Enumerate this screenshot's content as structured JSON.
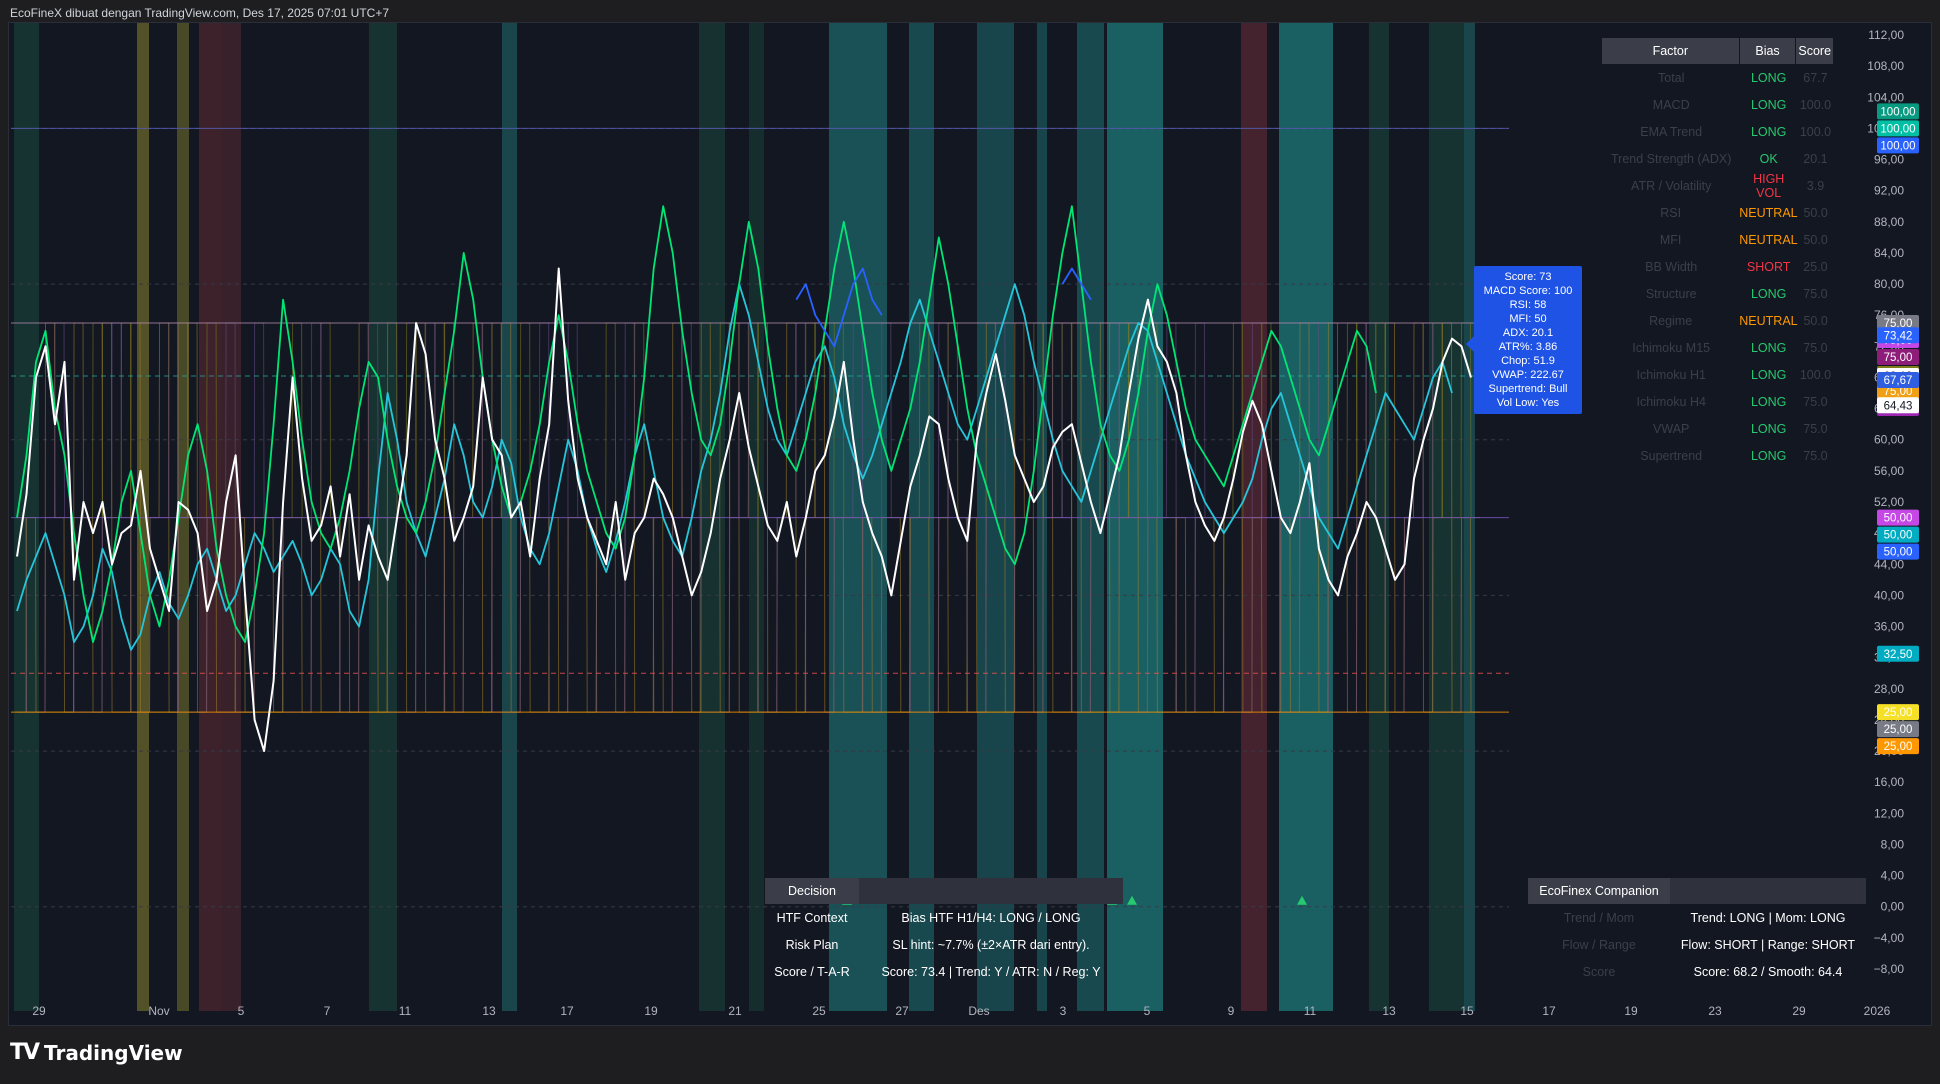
{
  "header": {
    "title": "EcoFineX dibuat dengan TradingView.com, Des 17, 2025 07:01 UTC+7"
  },
  "footer": {
    "brand": "TradingView",
    "logo_icon": "tradingview-logo-icon"
  },
  "chart_data": {
    "type": "line",
    "ylim": [
      -8,
      112
    ],
    "y_ticks": [
      "112,00",
      "108,00",
      "104,00",
      "100,00",
      "96,00",
      "92,00",
      "88,00",
      "84,00",
      "80,00",
      "76,00",
      "72,00",
      "68,00",
      "64,00",
      "60,00",
      "56,00",
      "52,00",
      "48,00",
      "44,00",
      "40,00",
      "36,00",
      "32,00",
      "28,00",
      "24,00",
      "20,00",
      "16,00",
      "12,00",
      "8,00",
      "4,00",
      "0,00",
      "−4,00",
      "−8,00"
    ],
    "x_ticks": [
      "29",
      "Nov",
      "5",
      "7",
      "11",
      "13",
      "17",
      "19",
      "21",
      "25",
      "27",
      "Des",
      "3",
      "5",
      "9",
      "11",
      "13",
      "15",
      "17",
      "19",
      "23",
      "29",
      "2026"
    ],
    "reference_levels": [
      {
        "value": 100,
        "color": "#5b5fbf"
      },
      {
        "value": 75,
        "color": "#b08ab0"
      },
      {
        "value": 68.19,
        "color": "#26a69a"
      },
      {
        "value": 50,
        "color": "#7e57c2"
      },
      {
        "value": 30,
        "color": "#ef5350"
      },
      {
        "value": 25,
        "color": "#ff9800"
      }
    ],
    "price_labels": [
      {
        "value": 100.0,
        "text": "100,00",
        "color": "#089981"
      },
      {
        "value": 100.0,
        "text": "100,00",
        "color": "#00bfa5"
      },
      {
        "value": 100.0,
        "text": "100,00",
        "color": "#2962ff"
      },
      {
        "value": 75.0,
        "text": "75,00",
        "color": "#787b86"
      },
      {
        "value": 75.0,
        "text": "75,00",
        "color": "#c548e6"
      },
      {
        "value": 75.0,
        "text": "75,00",
        "color": "#8e1d7a"
      },
      {
        "value": 75.0,
        "text": "75,00",
        "color": "#7d7d1a"
      },
      {
        "value": 75.0,
        "text": "75,00",
        "color": "#f0a015"
      },
      {
        "value": 75.0,
        "text": "75,00",
        "color": "#9c27b0"
      },
      {
        "value": 73.42,
        "text": "73,42",
        "color": "#2962ff"
      },
      {
        "value": 68.19,
        "text": "68,19",
        "color": "#ffffff"
      },
      {
        "value": 67.67,
        "text": "67,67",
        "color": "#2f5fe0"
      },
      {
        "value": 64.43,
        "text": "64,43",
        "color": "#ffffff"
      },
      {
        "value": 50.0,
        "text": "50,00",
        "color": "#c548e6"
      },
      {
        "value": 50.0,
        "text": "50,00",
        "color": "#00acc1"
      },
      {
        "value": 50.0,
        "text": "50,00",
        "color": "#2962ff"
      },
      {
        "value": 32.5,
        "text": "32,50",
        "color": "#00acc1"
      },
      {
        "value": 25.0,
        "text": "25,00",
        "color": "#f5e027"
      },
      {
        "value": 25.0,
        "text": "25,00",
        "color": "#787b86"
      },
      {
        "value": 25.0,
        "text": "25,00",
        "color": "#ff9800"
      }
    ],
    "series": [
      {
        "color": "#ffffff",
        "values": [
          45,
          53,
          68,
          72,
          62,
          70,
          42,
          52,
          48,
          52,
          44,
          48,
          49,
          56,
          46,
          42,
          38,
          52,
          51,
          48,
          38,
          42,
          52,
          58,
          40,
          24,
          20,
          29,
          52,
          68,
          55,
          47,
          49,
          54,
          45,
          53,
          42,
          49,
          45,
          42,
          50,
          58,
          75,
          71,
          60,
          55,
          47,
          50,
          54,
          68,
          60,
          58,
          50,
          52,
          45,
          55,
          62,
          82,
          65,
          55,
          50,
          47,
          44,
          52,
          42,
          48,
          50,
          55,
          53,
          50,
          45,
          40,
          43,
          48,
          55,
          60,
          66,
          59,
          54,
          49,
          47,
          52,
          45,
          50,
          56,
          58,
          63,
          70,
          60,
          52,
          48,
          45,
          40,
          47,
          54,
          58,
          63,
          62,
          55,
          50,
          47,
          60,
          66,
          71,
          65,
          58,
          55,
          52,
          54,
          59,
          61,
          62,
          57,
          52,
          48,
          53,
          58,
          66,
          73,
          78,
          72,
          70,
          66,
          58,
          52,
          49,
          47,
          50,
          55,
          61,
          65,
          62,
          56,
          50,
          48,
          52,
          57,
          46,
          42,
          40,
          45,
          48,
          52,
          50,
          46,
          42,
          44,
          55,
          60,
          64,
          70,
          73,
          72,
          68
        ]
      },
      {
        "color": "#26c6da",
        "values": [
          38,
          42,
          45,
          48,
          44,
          40,
          34,
          36,
          40,
          46,
          43,
          37,
          33,
          35,
          40,
          43,
          39,
          37,
          40,
          44,
          46,
          42,
          38,
          40,
          44,
          48,
          46,
          43,
          45,
          47,
          44,
          40,
          42,
          46,
          44,
          38,
          36,
          42,
          55,
          66,
          60,
          52,
          48,
          45,
          50,
          55,
          62,
          58,
          52,
          50,
          54,
          60,
          57,
          50,
          46,
          44,
          48,
          54,
          60,
          56,
          50,
          46,
          43,
          47,
          52,
          58,
          62,
          56,
          50,
          47,
          45,
          50,
          56,
          60,
          66,
          74,
          80,
          76,
          70,
          64,
          60,
          58,
          62,
          66,
          70,
          72,
          68,
          62,
          58,
          55,
          58,
          62,
          66,
          70,
          75,
          78,
          74,
          70,
          66,
          62,
          60,
          64,
          68,
          72,
          76,
          80,
          76,
          70,
          65,
          60,
          56,
          54,
          52,
          56,
          60,
          64,
          68,
          72,
          75,
          74,
          70,
          66,
          62,
          58,
          55,
          52,
          50,
          48,
          50,
          52,
          55,
          60,
          64,
          66,
          62,
          58,
          54,
          50,
          48,
          46,
          50,
          54,
          58,
          62,
          66,
          64,
          62,
          60,
          64,
          68,
          70,
          66
        ]
      },
      {
        "color": "#00e676",
        "values": [
          50,
          58,
          70,
          74,
          64,
          58,
          48,
          40,
          34,
          38,
          44,
          52,
          56,
          48,
          40,
          36,
          42,
          50,
          58,
          62,
          56,
          46,
          40,
          36,
          34,
          40,
          48,
          62,
          78,
          70,
          60,
          52,
          48,
          46,
          50,
          56,
          64,
          70,
          68,
          60,
          54,
          50,
          48,
          52,
          58,
          66,
          74,
          84,
          78,
          68,
          60,
          54,
          50,
          52,
          56,
          62,
          70,
          76,
          70,
          62,
          56,
          52,
          48,
          46,
          50,
          58,
          68,
          82,
          90,
          84,
          74,
          66,
          60,
          58,
          62,
          70,
          80,
          88,
          82,
          72,
          64,
          58,
          56,
          60,
          66,
          74,
          82,
          88,
          82,
          74,
          66,
          60,
          56,
          60,
          64,
          70,
          78,
          86,
          80,
          72,
          64,
          58,
          54,
          50,
          46,
          44,
          48,
          56,
          66,
          76,
          84,
          90,
          80,
          70,
          62,
          58,
          56,
          60,
          66,
          74,
          80,
          76,
          70,
          64,
          60,
          58,
          56,
          54,
          58,
          62,
          66,
          70,
          74,
          72,
          68,
          64,
          60,
          58,
          62,
          66,
          70,
          74,
          72,
          66
        ]
      },
      {
        "color": "#2962ff",
        "values": [
          null,
          null,
          null,
          null,
          null,
          null,
          null,
          null,
          null,
          null,
          null,
          null,
          null,
          null,
          null,
          null,
          null,
          null,
          null,
          null,
          null,
          null,
          null,
          null,
          null,
          null,
          null,
          null,
          null,
          null,
          null,
          null,
          null,
          null,
          null,
          null,
          null,
          null,
          null,
          null,
          null,
          null,
          null,
          null,
          null,
          null,
          null,
          null,
          null,
          null,
          null,
          null,
          null,
          null,
          null,
          null,
          null,
          null,
          null,
          null,
          null,
          null,
          null,
          null,
          null,
          null,
          null,
          null,
          null,
          null,
          null,
          null,
          null,
          null,
          null,
          null,
          null,
          null,
          null,
          null,
          null,
          null,
          78,
          80,
          76,
          74,
          72,
          76,
          80,
          82,
          78,
          76,
          null,
          null,
          null,
          null,
          null,
          null,
          null,
          null,
          null,
          null,
          null,
          null,
          null,
          null,
          null,
          null,
          null,
          null,
          80,
          82,
          80,
          78,
          null,
          null,
          null,
          null,
          null,
          null,
          null,
          null,
          null,
          null,
          null,
          null,
          null,
          null,
          null,
          null,
          null,
          null,
          null,
          null,
          null,
          null,
          null,
          null,
          null,
          null,
          null,
          null,
          null,
          null,
          null,
          null,
          null,
          null,
          null
        ]
      }
    ]
  },
  "factor_table": {
    "headers": {
      "factor": "Factor",
      "bias": "Bias",
      "score": "Score"
    },
    "rows": [
      {
        "factor": "Total",
        "bias": "LONG",
        "score": "67.7",
        "bias_color": "#26c96f"
      },
      {
        "factor": "MACD",
        "bias": "LONG",
        "score": "100.0",
        "bias_color": "#26c96f"
      },
      {
        "factor": "EMA Trend",
        "bias": "LONG",
        "score": "100.0",
        "bias_color": "#26c96f"
      },
      {
        "factor": "Trend Strength (ADX)",
        "bias": "OK",
        "score": "20.1",
        "bias_color": "#26c96f"
      },
      {
        "factor": "ATR / Volatility",
        "bias": "HIGH VOL",
        "score": "3.9",
        "bias_color": "#f23645"
      },
      {
        "factor": "RSI",
        "bias": "NEUTRAL",
        "score": "50.0",
        "bias_color": "#ff9800"
      },
      {
        "factor": "MFI",
        "bias": "NEUTRAL",
        "score": "50.0",
        "bias_color": "#ff9800"
      },
      {
        "factor": "BB Width",
        "bias": "SHORT",
        "score": "25.0",
        "bias_color": "#f23645"
      },
      {
        "factor": "Structure",
        "bias": "LONG",
        "score": "75.0",
        "bias_color": "#26c96f"
      },
      {
        "factor": "Regime",
        "bias": "NEUTRAL",
        "score": "50.0",
        "bias_color": "#ff9800"
      },
      {
        "factor": "Ichimoku M15",
        "bias": "LONG",
        "score": "75.0",
        "bias_color": "#26c96f"
      },
      {
        "factor": "Ichimoku H1",
        "bias": "LONG",
        "score": "100.0",
        "bias_color": "#26c96f"
      },
      {
        "factor": "Ichimoku H4",
        "bias": "LONG",
        "score": "75.0",
        "bias_color": "#26c96f"
      },
      {
        "factor": "VWAP",
        "bias": "LONG",
        "score": "75.0",
        "bias_color": "#26c96f"
      },
      {
        "factor": "Supertrend",
        "bias": "LONG",
        "score": "75.0",
        "bias_color": "#26c96f"
      }
    ]
  },
  "tooltip": {
    "lines": [
      "Score: 73",
      "MACD Score: 100",
      "RSI: 58",
      "MFI: 50",
      "ADX: 20.1",
      "ATR%: 3.86",
      "Chop: 51.9",
      "VWAP: 222.67",
      "Supertrend: Bull",
      "Vol Low: Yes"
    ]
  },
  "decision": {
    "title": "Decision",
    "rows": [
      {
        "key": "HTF Context",
        "value": "Bias HTF H1/H4: LONG / LONG"
      },
      {
        "key": "Risk Plan",
        "value": "SL hint: ~7.7% (±2×ATR dari entry)."
      },
      {
        "key": "Score / T-A-R",
        "value": "Score: 73.4 | Trend: Y / ATR: N / Reg: Y"
      }
    ]
  },
  "companion": {
    "title": "EcoFinex Companion",
    "rows": [
      {
        "key": "Trend / Mom",
        "value": "Trend: LONG | Mom: LONG"
      },
      {
        "key": "Flow / Range",
        "value": "Flow: SHORT | Range: SHORT"
      },
      {
        "key": "Score",
        "value": "Score: 68.2 / Smooth: 64.4"
      }
    ]
  }
}
